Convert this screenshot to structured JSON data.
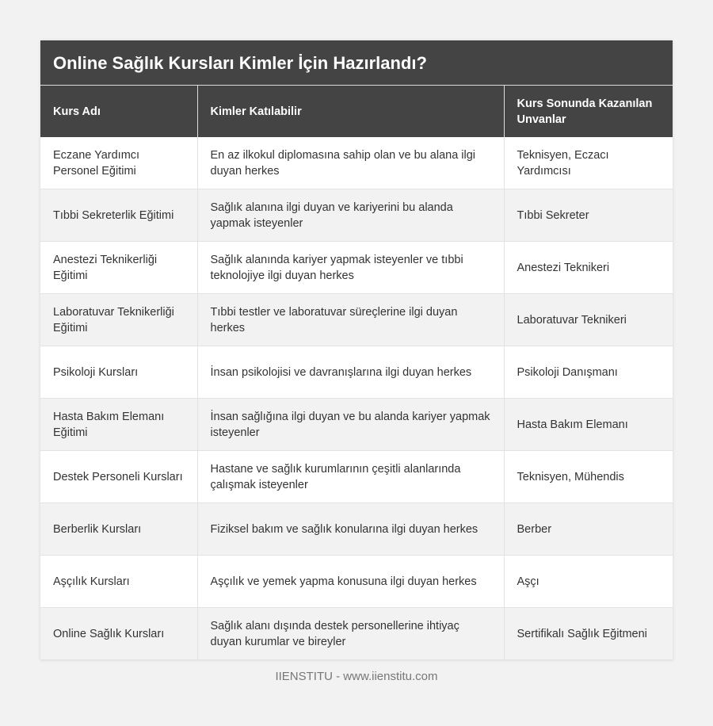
{
  "title": "Online Sağlık Kursları Kimler İçin Hazırlandı?",
  "columns": [
    "Kurs Adı",
    "Kimler Katılabilir",
    "Kurs Sonunda Kazanılan Unvanlar"
  ],
  "rows": [
    [
      "Eczane Yardımcı Personel Eğitimi",
      "En az ilkokul diplomasına sahip olan ve bu alana ilgi duyan herkes",
      "Teknisyen, Eczacı Yardımcısı"
    ],
    [
      "Tıbbi Sekreterlik Eğitimi",
      "Sağlık alanına ilgi duyan ve kariyerini bu alanda yapmak isteyenler",
      "Tıbbi Sekreter"
    ],
    [
      "Anestezi Teknikerliği Eğitimi",
      "Sağlık alanında kariyer yapmak isteyenler ve tıbbi teknolojiye ilgi duyan herkes",
      "Anestezi Teknikeri"
    ],
    [
      "Laboratuvar Teknikerliği Eğitimi",
      "Tıbbi testler ve laboratuvar süreçlerine ilgi duyan herkes",
      "Laboratuvar Teknikeri"
    ],
    [
      "Psikoloji Kursları",
      "İnsan psikolojisi ve davranışlarına ilgi duyan herkes",
      "Psikoloji Danışmanı"
    ],
    [
      "Hasta Bakım Elemanı Eğitimi",
      "İnsan sağlığına ilgi duyan ve bu alanda kariyer yapmak isteyenler",
      "Hasta Bakım Elemanı"
    ],
    [
      "Destek Personeli Kursları",
      "Hastane ve sağlık kurumlarının çeşitli alanlarında çalışmak isteyenler",
      "Teknisyen, Mühendis"
    ],
    [
      "Berberlik Kursları",
      "Fiziksel bakım ve sağlık konularına ilgi duyan herkes",
      "Berber"
    ],
    [
      "Aşçılık Kursları",
      "Aşçılık ve yemek yapma konusuna ilgi duyan herkes",
      "Aşçı"
    ],
    [
      "Online Sağlık Kursları",
      "Sağlık alanı dışında destek personellerine ihtiyaç duyan kurumlar ve bireyler",
      "Sertifikalı Sağlık Eğitmeni"
    ]
  ],
  "footer": "IIENSTITU - www.iienstitu.com",
  "colors": {
    "header_bg": "#444444",
    "page_bg": "#f2f2f2",
    "alt_row": "#f2f2f2"
  }
}
